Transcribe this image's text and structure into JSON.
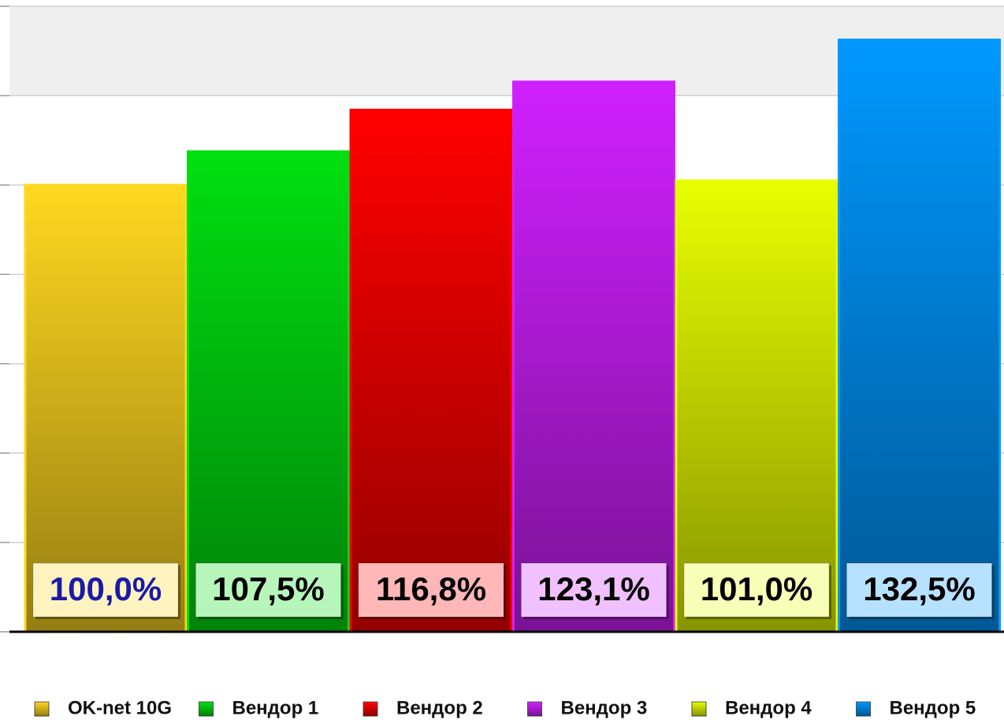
{
  "chart_data": {
    "type": "bar",
    "series": [
      {
        "name": "OK-net 10G",
        "color": "#ffd820",
        "values": [
          100.0
        ],
        "value_labels": [
          "100,0%"
        ],
        "label_color": "#1a1aa8"
      },
      {
        "name": "Вендор 1",
        "color": "#00e010",
        "values": [
          107.5
        ],
        "value_labels": [
          "107,5%"
        ],
        "label_color": "#000000"
      },
      {
        "name": "Вендор 2",
        "color": "#ff0000",
        "values": [
          116.8
        ],
        "value_labels": [
          "116,8%"
        ],
        "label_color": "#000000"
      },
      {
        "name": "Вендор 3",
        "color": "#d020ff",
        "values": [
          123.1
        ],
        "value_labels": [
          "123,1%"
        ],
        "label_color": "#000000"
      },
      {
        "name": "Вендор 4",
        "color": "#e8ff00",
        "values": [
          101.0
        ],
        "value_labels": [
          "101,0%"
        ],
        "label_color": "#000000"
      },
      {
        "name": "Вендор 5",
        "color": "#0098ff",
        "values": [
          132.5
        ],
        "value_labels": [
          "132,5%"
        ],
        "label_color": "#000000"
      }
    ],
    "ylim": [
      0,
      140
    ],
    "yticks": [
      0,
      20,
      40,
      60,
      80,
      100,
      120,
      140
    ],
    "grid": true,
    "legend": "bottom"
  }
}
